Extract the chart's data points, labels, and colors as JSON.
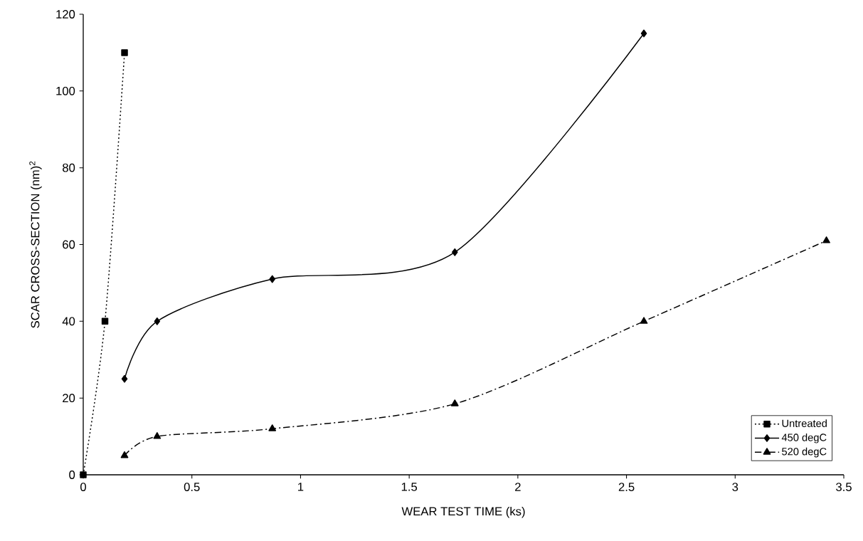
{
  "chart_data": {
    "type": "line",
    "xlabel": "WEAR TEST TIME (ks)",
    "ylabel": "SCAR CROSS-SECTION (nm)$^{2}$",
    "xlim": [
      0,
      3.5
    ],
    "ylim": [
      0,
      120
    ],
    "xticks": [
      0,
      0.5,
      1,
      1.5,
      2,
      2.5,
      3,
      3.5
    ],
    "yticks": [
      0,
      20,
      40,
      60,
      80,
      100,
      120
    ],
    "legend": "bottom right",
    "series": [
      {
        "name": "Untreated",
        "color": "#000000",
        "marker": "square",
        "line_style": "dotted",
        "x": [
          0,
          0.1,
          0.19
        ],
        "values": [
          0,
          40,
          110
        ]
      },
      {
        "name": "450 degC",
        "color": "#000000",
        "marker": "diamond",
        "line_style": "solid",
        "x": [
          0.19,
          0.34,
          0.87,
          1.71,
          2.58
        ],
        "values": [
          25,
          40,
          51,
          58,
          115
        ]
      },
      {
        "name": "520 degC",
        "color": "#000000",
        "marker": "triangle",
        "line_style": "dashed",
        "x": [
          0.19,
          0.34,
          0.87,
          1.71,
          2.58,
          3.42
        ],
        "values": [
          5,
          10,
          12,
          18.5,
          40,
          61
        ]
      }
    ]
  }
}
